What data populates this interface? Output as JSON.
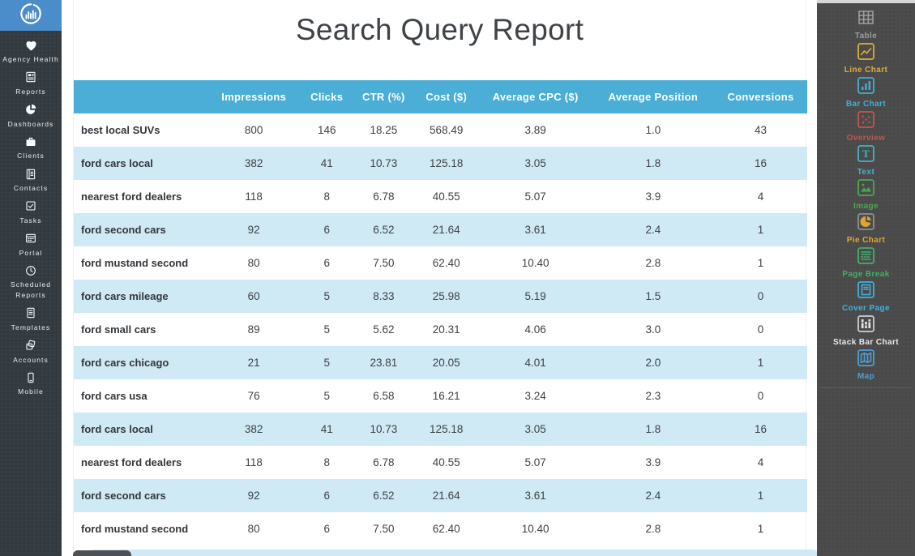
{
  "theme": {
    "logo_bg": "#4b8cca",
    "sidebar_bg": "#333a40",
    "sidebar_text": "#eceeee",
    "panel_bg": "#4a4a4a",
    "canvas_bg": "#ffffff",
    "title_text": "#3f4347",
    "header_bg": "#4aaed6",
    "header_text": "#ffffff",
    "row_alt_bg": "#cfe9f5",
    "row_text": "#3e4246",
    "query_text": "#33373b",
    "scroll_track": "#d6d6d6",
    "bottom_tab": "#4d5154"
  },
  "sidebar": {
    "logo_icon": "chart-circle-logo-icon",
    "items": [
      {
        "label": "Agency Health",
        "icon": "heart-icon"
      },
      {
        "label": "Reports",
        "icon": "report-document-icon"
      },
      {
        "label": "Dashboards",
        "icon": "pie-dashboard-icon"
      },
      {
        "label": "Clients",
        "icon": "briefcase-icon"
      },
      {
        "label": "Contacts",
        "icon": "contacts-book-icon"
      },
      {
        "label": "Tasks",
        "icon": "checkbox-icon"
      },
      {
        "label": "Portal",
        "icon": "portal-window-icon"
      },
      {
        "label": "Scheduled Reports",
        "icon": "clock-icon"
      },
      {
        "label": "Templates",
        "icon": "template-document-icon"
      },
      {
        "label": "Accounts",
        "icon": "stacked-cards-icon"
      },
      {
        "label": "Mobile",
        "icon": "mobile-phone-icon"
      }
    ]
  },
  "report": {
    "title": "Search Query Report"
  },
  "table": {
    "columns": [
      "",
      "Impressions",
      "Clicks",
      "CTR (%)",
      "Cost ($)",
      "Average CPC ($)",
      "Average Position",
      "Conversions"
    ],
    "rows": [
      [
        "best local SUVs",
        "800",
        "146",
        "18.25",
        "568.49",
        "3.89",
        "1.0",
        "43"
      ],
      [
        "ford cars local",
        "382",
        "41",
        "10.73",
        "125.18",
        "3.05",
        "1.8",
        "16"
      ],
      [
        "nearest ford dealers",
        "118",
        "8",
        "6.78",
        "40.55",
        "5.07",
        "3.9",
        "4"
      ],
      [
        "ford second cars",
        "92",
        "6",
        "6.52",
        "21.64",
        "3.61",
        "2.4",
        "1"
      ],
      [
        "ford mustand second",
        "80",
        "6",
        "7.50",
        "62.40",
        "10.40",
        "2.8",
        "1"
      ],
      [
        "ford cars mileage",
        "60",
        "5",
        "8.33",
        "25.98",
        "5.19",
        "1.5",
        "0"
      ],
      [
        "ford small cars",
        "89",
        "5",
        "5.62",
        "20.31",
        "4.06",
        "3.0",
        "0"
      ],
      [
        "ford cars chicago",
        "21",
        "5",
        "23.81",
        "20.05",
        "4.01",
        "2.0",
        "1"
      ],
      [
        "ford cars usa",
        "76",
        "5",
        "6.58",
        "16.21",
        "3.24",
        "2.3",
        "0"
      ],
      [
        "ford cars local",
        "382",
        "41",
        "10.73",
        "125.18",
        "3.05",
        "1.8",
        "16"
      ],
      [
        "nearest ford dealers",
        "118",
        "8",
        "6.78",
        "40.55",
        "5.07",
        "3.9",
        "4"
      ],
      [
        "ford second cars",
        "92",
        "6",
        "6.52",
        "21.64",
        "3.61",
        "2.4",
        "1"
      ],
      [
        "ford mustand second",
        "80",
        "6",
        "7.50",
        "62.40",
        "10.40",
        "2.8",
        "1"
      ]
    ]
  },
  "widgets": {
    "items": [
      {
        "label": "Table",
        "icon": "table-widget-icon",
        "color": "#9c9c9c"
      },
      {
        "label": "Line Chart",
        "icon": "line-chart-icon",
        "color": "#dfae3c"
      },
      {
        "label": "Bar Chart",
        "icon": "bar-chart-icon",
        "color": "#41b0d6"
      },
      {
        "label": "Overview",
        "icon": "overview-dots-icon",
        "color": "#c4564c"
      },
      {
        "label": "Text",
        "icon": "text-widget-icon",
        "color": "#44b4c4"
      },
      {
        "label": "Image",
        "icon": "image-widget-icon",
        "color": "#49a94d"
      },
      {
        "label": "Pie Chart",
        "icon": "pie-chart-widget-icon",
        "color": "#dfa62e",
        "box": "#909090"
      },
      {
        "label": "Page Break",
        "icon": "page-break-icon",
        "color": "#43b065"
      },
      {
        "label": "Cover Page",
        "icon": "cover-page-icon",
        "color": "#41b1dd"
      },
      {
        "label": "Stack Bar Chart",
        "icon": "stack-bar-chart-icon",
        "color": "#e8e8e8",
        "box": "#cfcfcf"
      },
      {
        "label": "Map",
        "icon": "map-widget-icon",
        "color": "#4f9fd6"
      }
    ]
  }
}
